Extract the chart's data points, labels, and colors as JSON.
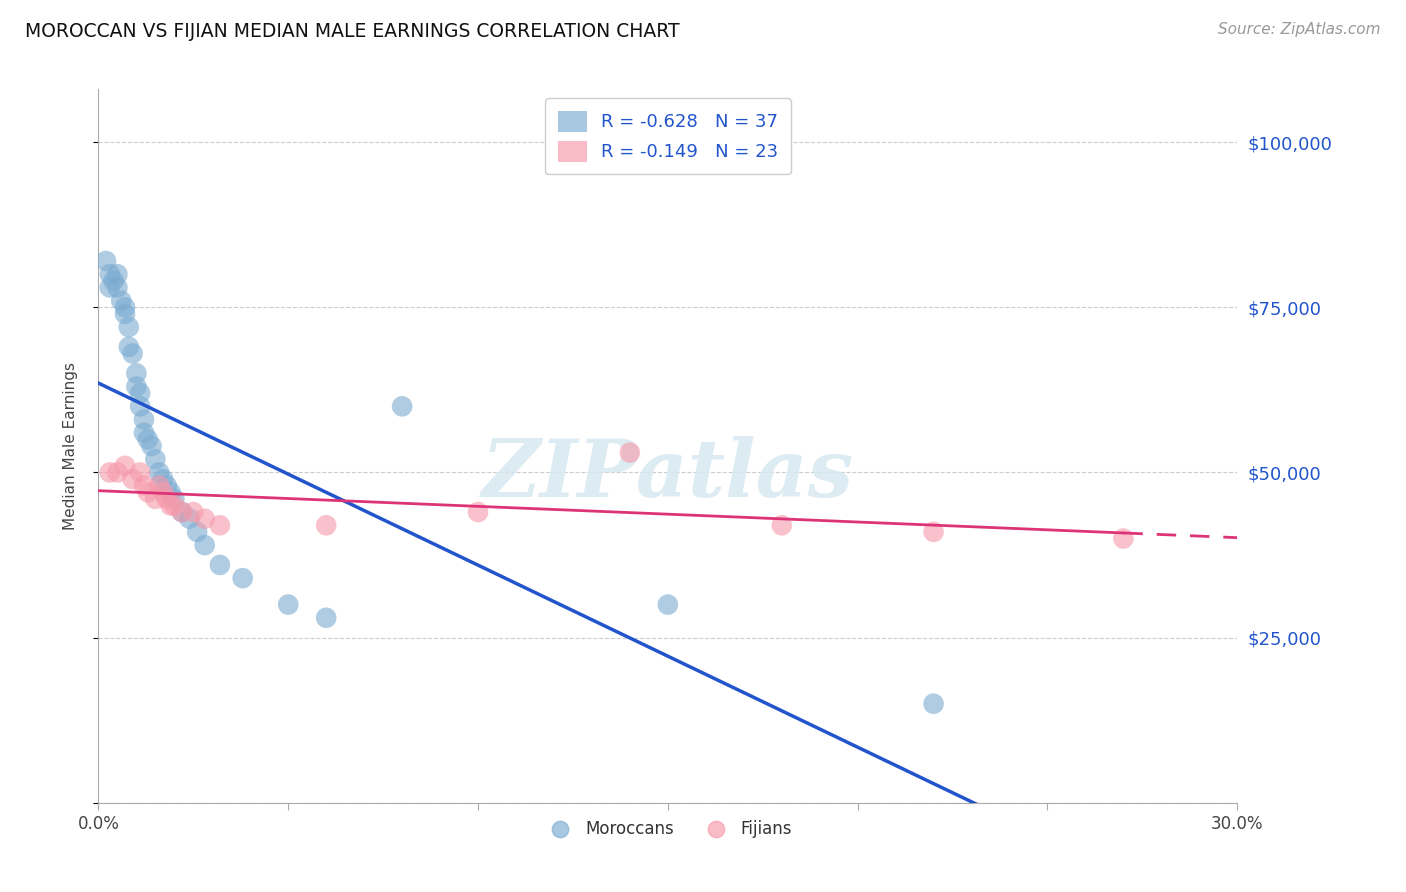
{
  "title": "MOROCCAN VS FIJIAN MEDIAN MALE EARNINGS CORRELATION CHART",
  "source": "Source: ZipAtlas.com",
  "ylabel": "Median Male Earnings",
  "y_ticks": [
    0,
    25000,
    50000,
    75000,
    100000
  ],
  "y_tick_labels": [
    "",
    "$25,000",
    "$50,000",
    "$75,000",
    "$100,000"
  ],
  "x_min": 0.0,
  "x_max": 0.3,
  "y_min": 0,
  "y_max": 108000,
  "moroccan_color": "#7aaad0",
  "fijian_color": "#f699aa",
  "moroccan_line_color": "#2255cc",
  "fijian_line_color": "#dd3377",
  "legend_color": "#2255cc",
  "tick_color": "#2255cc",
  "grid_color": "#cccccc",
  "spine_color": "#aaaaaa",
  "legend_R_moroccan": "R = -0.628",
  "legend_N_moroccan": "N = 37",
  "legend_R_fijian": "R = -0.149",
  "legend_N_fijian": "N = 23",
  "watermark": "ZIPatlas",
  "moroccan_x": [
    0.002,
    0.003,
    0.003,
    0.004,
    0.005,
    0.005,
    0.006,
    0.007,
    0.007,
    0.008,
    0.008,
    0.009,
    0.01,
    0.01,
    0.011,
    0.011,
    0.012,
    0.012,
    0.013,
    0.014,
    0.015,
    0.016,
    0.017,
    0.018,
    0.019,
    0.02,
    0.022,
    0.024,
    0.026,
    0.028,
    0.032,
    0.038,
    0.05,
    0.06,
    0.08,
    0.15,
    0.22
  ],
  "moroccan_y": [
    82000,
    80000,
    78000,
    79000,
    78000,
    80000,
    76000,
    74000,
    75000,
    72000,
    69000,
    68000,
    65000,
    63000,
    62000,
    60000,
    58000,
    56000,
    55000,
    54000,
    52000,
    50000,
    49000,
    48000,
    47000,
    46000,
    44000,
    43000,
    41000,
    39000,
    36000,
    34000,
    30000,
    28000,
    60000,
    30000,
    15000
  ],
  "moroccan_line_x0": 0.0,
  "moroccan_line_y0": 62000,
  "moroccan_line_x1": 0.3,
  "moroccan_line_y1": 0,
  "fijian_x": [
    0.003,
    0.005,
    0.007,
    0.009,
    0.011,
    0.012,
    0.013,
    0.015,
    0.016,
    0.017,
    0.018,
    0.019,
    0.02,
    0.022,
    0.025,
    0.028,
    0.032,
    0.06,
    0.1,
    0.14,
    0.18,
    0.22,
    0.27
  ],
  "fijian_y": [
    50000,
    50000,
    51000,
    49000,
    50000,
    48000,
    47000,
    46000,
    48000,
    47000,
    46000,
    45000,
    45000,
    44000,
    44000,
    43000,
    42000,
    42000,
    44000,
    53000,
    42000,
    41000,
    40000
  ],
  "fijian_line_x0": 0.0,
  "fijian_line_y0": 49000,
  "fijian_line_x1": 0.2,
  "fijian_line_y1": 46000,
  "fijian_line_dash_x0": 0.2,
  "fijian_line_dash_y0": 46000,
  "fijian_line_dash_x1": 0.3,
  "fijian_line_dash_y1": 44500
}
